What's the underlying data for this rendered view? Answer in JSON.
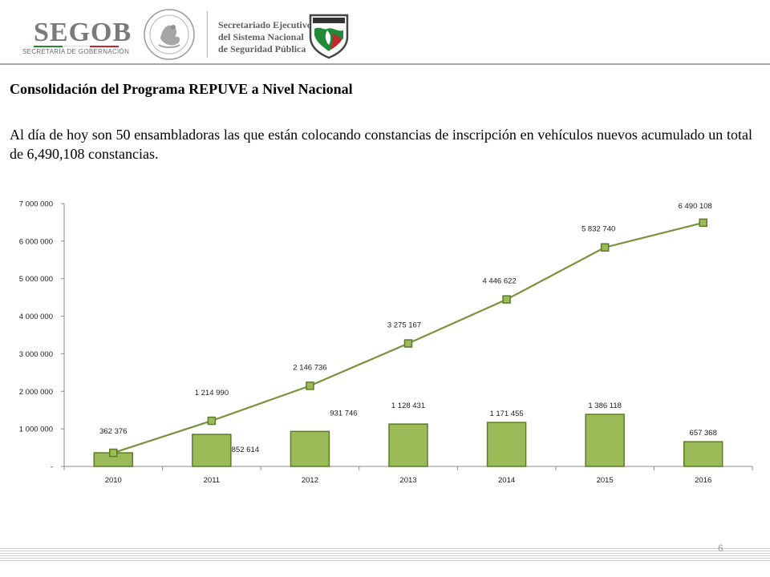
{
  "header": {
    "logo_text": "SEGOB",
    "logo_subtitle": "SECRETARÍA DE GOBERNACIÓN",
    "secretariat_line1": "Secretariado Ejecutivo",
    "secretariat_line2": "del Sistema Nacional",
    "secretariat_line3": "de Seguridad Pública",
    "colors": {
      "gray": "#7a7a7a",
      "green": "#1f8a3a",
      "red": "#c0282d"
    }
  },
  "title": "Consolidación del Programa REPUVE a Nivel Nacional",
  "paragraph": "Al día de hoy son 50 ensambladoras las que están colocando constancias de inscripción en vehículos nuevos acumulado un total de 6,490,108 constancias.",
  "page_number": "6",
  "chart_data": {
    "type": "bar",
    "categories": [
      "2010",
      "2011",
      "2012",
      "2013",
      "2014",
      "2015",
      "2016"
    ],
    "series": [
      {
        "type": "bar",
        "values": [
          362376,
          852614,
          931746,
          1128431,
          1171455,
          1386118,
          657368
        ],
        "labels": [
          "362 376",
          "852 614",
          "931 746",
          "1 128 431",
          "1 171 455",
          "1 386 118",
          "657 368"
        ],
        "color": "#9bbb59",
        "stroke": "#5e7a2a"
      },
      {
        "type": "line",
        "values": [
          362376,
          1214990,
          2146736,
          3275167,
          4446622,
          5832740,
          6490108
        ],
        "labels": [
          "362 376",
          "1 214 990",
          "2 146 736",
          "3 275 167",
          "4 446 622",
          "5 832 740",
          "6 490 108"
        ],
        "color": "#77933c",
        "marker": "square"
      }
    ],
    "ylim": [
      0,
      7000000
    ],
    "yticks": [
      0,
      1000000,
      2000000,
      3000000,
      4000000,
      5000000,
      6000000,
      7000000
    ],
    "ytick_labels": [
      "-",
      "1 000 000",
      "2 000 000",
      "3 000 000",
      "4 000 000",
      "5 000 000",
      "6 000 000",
      "7 000 000"
    ],
    "grid": false,
    "legend": "none",
    "title": "",
    "xlabel": "",
    "ylabel": ""
  }
}
